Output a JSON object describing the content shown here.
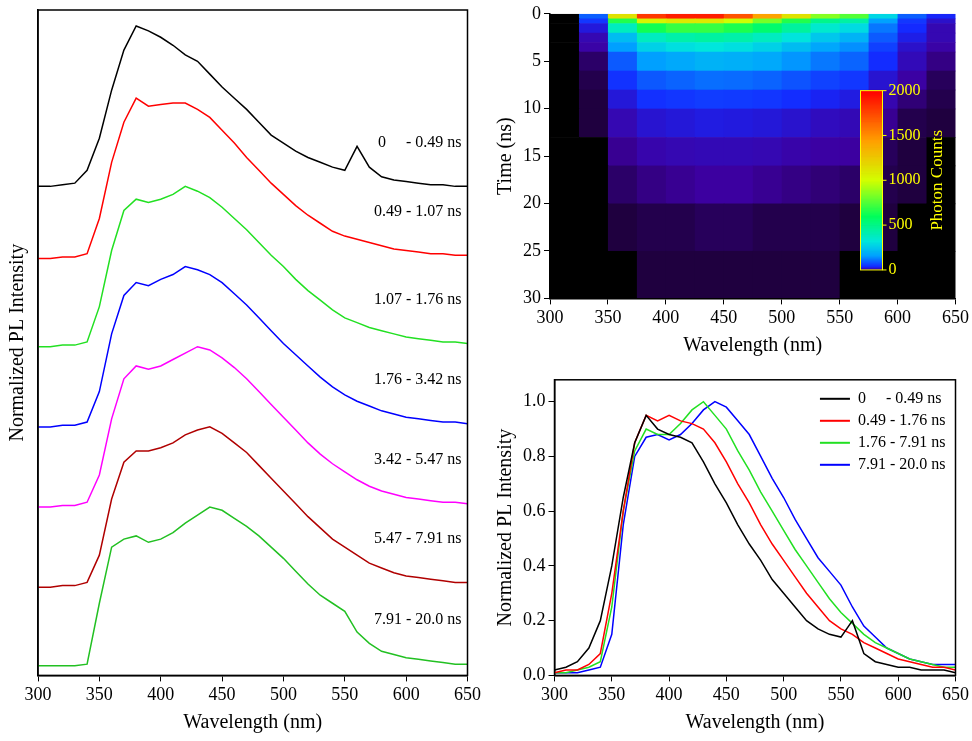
{
  "chart_data": [
    {
      "type": "line",
      "xlabel": "Wavelength (nm)",
      "ylabel": "Normalized PL Intensity",
      "x": [
        300,
        310,
        320,
        330,
        340,
        350,
        360,
        370,
        380,
        390,
        400,
        410,
        420,
        430,
        440,
        450,
        460,
        470,
        480,
        490,
        500,
        510,
        520,
        530,
        540,
        550,
        560,
        570,
        580,
        590,
        600,
        610,
        620,
        630,
        640,
        650
      ],
      "series": [
        {
          "name": "0     - 0.49 ns",
          "color": "#000000",
          "values": [
            3.0,
            3.0,
            3.01,
            3.02,
            3.1,
            3.3,
            3.6,
            3.85,
            4.0,
            3.97,
            3.93,
            3.88,
            3.82,
            3.78,
            3.7,
            3.62,
            3.55,
            3.48,
            3.4,
            3.32,
            3.27,
            3.22,
            3.18,
            3.15,
            3.12,
            3.1,
            3.25,
            3.12,
            3.06,
            3.04,
            3.03,
            3.02,
            3.01,
            3.01,
            3.0,
            3.0
          ]
        },
        {
          "name": "0.49 - 1.07 ns",
          "color": "#ff0000",
          "values": [
            2.55,
            2.55,
            2.56,
            2.56,
            2.58,
            2.8,
            3.15,
            3.4,
            3.55,
            3.5,
            3.51,
            3.52,
            3.52,
            3.48,
            3.43,
            3.35,
            3.27,
            3.18,
            3.1,
            3.02,
            2.95,
            2.88,
            2.82,
            2.77,
            2.72,
            2.69,
            2.67,
            2.65,
            2.63,
            2.61,
            2.6,
            2.59,
            2.58,
            2.58,
            2.57,
            2.57
          ]
        },
        {
          "name": "1.07 - 1.76 ns",
          "color": "#22e022",
          "values": [
            2.0,
            2.0,
            2.01,
            2.01,
            2.03,
            2.25,
            2.6,
            2.85,
            2.92,
            2.9,
            2.92,
            2.95,
            3.0,
            2.97,
            2.93,
            2.87,
            2.8,
            2.73,
            2.65,
            2.57,
            2.5,
            2.42,
            2.35,
            2.29,
            2.23,
            2.18,
            2.15,
            2.12,
            2.1,
            2.08,
            2.06,
            2.05,
            2.04,
            2.03,
            2.03,
            2.02
          ]
        },
        {
          "name": "1.76 - 3.42 ns",
          "color": "#0000ff",
          "values": [
            1.5,
            1.5,
            1.51,
            1.51,
            1.53,
            1.72,
            2.08,
            2.32,
            2.4,
            2.38,
            2.42,
            2.45,
            2.5,
            2.48,
            2.45,
            2.4,
            2.33,
            2.26,
            2.18,
            2.1,
            2.02,
            1.95,
            1.88,
            1.81,
            1.75,
            1.7,
            1.66,
            1.63,
            1.6,
            1.58,
            1.56,
            1.55,
            1.54,
            1.53,
            1.53,
            1.52
          ]
        },
        {
          "name": "3.42 - 5.47 ns",
          "color": "#ff00ff",
          "values": [
            1.0,
            1.0,
            1.01,
            1.01,
            1.03,
            1.2,
            1.55,
            1.8,
            1.88,
            1.86,
            1.88,
            1.92,
            1.96,
            2.0,
            1.98,
            1.93,
            1.87,
            1.8,
            1.72,
            1.64,
            1.56,
            1.48,
            1.4,
            1.33,
            1.27,
            1.22,
            1.17,
            1.13,
            1.1,
            1.08,
            1.06,
            1.05,
            1.04,
            1.03,
            1.03,
            1.02
          ]
        },
        {
          "name": "5.47 - 7.91 ns",
          "color": "#b00000",
          "values": [
            0.5,
            0.5,
            0.51,
            0.51,
            0.53,
            0.7,
            1.05,
            1.28,
            1.35,
            1.35,
            1.37,
            1.4,
            1.45,
            1.48,
            1.5,
            1.46,
            1.4,
            1.34,
            1.26,
            1.18,
            1.1,
            1.02,
            0.94,
            0.87,
            0.8,
            0.75,
            0.7,
            0.65,
            0.62,
            0.59,
            0.57,
            0.56,
            0.55,
            0.54,
            0.53,
            0.53
          ]
        },
        {
          "name": "7.91 - 20.0 ns",
          "color": "#22c022",
          "values": [
            0.01,
            0.01,
            0.01,
            0.01,
            0.02,
            0.4,
            0.75,
            0.8,
            0.82,
            0.78,
            0.8,
            0.84,
            0.9,
            0.95,
            1.0,
            0.98,
            0.93,
            0.88,
            0.82,
            0.75,
            0.68,
            0.6,
            0.52,
            0.45,
            0.4,
            0.35,
            0.22,
            0.15,
            0.1,
            0.08,
            0.06,
            0.05,
            0.04,
            0.03,
            0.02,
            0.02
          ]
        }
      ],
      "xlim": [
        300,
        650
      ],
      "xticks": [
        300,
        350,
        400,
        450,
        500,
        550,
        600,
        650
      ],
      "ylim": [
        -0.05,
        4.1
      ],
      "tick_labels": "x",
      "grid": false,
      "legend": "inline"
    },
    {
      "type": "heatmap",
      "xlabel": "Wavelength (nm)",
      "ylabel": "Time (ns)",
      "x_bins": [
        300,
        325,
        350,
        375,
        400,
        425,
        450,
        475,
        500,
        525,
        550,
        575,
        600,
        625,
        650
      ],
      "y_bins": [
        0,
        0.5,
        1,
        2,
        3,
        4,
        6,
        8,
        10,
        13,
        16,
        20,
        25,
        30
      ],
      "cells": [
        [
          0,
          95,
          1140,
          1805,
          1900,
          1900,
          1710,
          1425,
          1140,
          855,
          760,
          285,
          95,
          38
        ],
        [
          0,
          55,
          660,
          1045,
          1100,
          1100,
          990,
          825,
          660,
          495,
          440,
          165,
          55,
          22
        ],
        [
          0,
          28,
          385,
          630,
          700,
          700,
          651,
          560,
          455,
          350,
          294,
          119,
          42,
          14
        ],
        [
          0,
          14,
          225,
          383,
          428,
          450,
          428,
          383,
          315,
          248,
          203,
          90,
          32,
          14
        ],
        [
          0,
          10,
          160,
          272,
          304,
          320,
          304,
          272,
          224,
          176,
          144,
          64,
          22,
          10
        ],
        [
          0,
          4,
          90,
          160,
          180,
          200,
          194,
          180,
          150,
          120,
          100,
          44,
          16,
          6
        ],
        [
          0,
          2,
          50,
          88,
          99,
          110,
          107,
          99,
          83,
          66,
          55,
          24,
          9,
          3
        ],
        [
          0,
          1,
          27,
          48,
          54,
          60,
          58,
          54,
          45,
          36,
          30,
          13,
          5,
          2
        ],
        [
          0,
          1,
          14,
          24,
          27,
          30,
          29,
          27,
          23,
          18,
          15,
          7,
          2,
          1
        ],
        [
          0,
          0,
          7,
          12,
          14,
          15,
          15,
          14,
          11,
          9,
          8,
          3,
          1,
          0
        ],
        [
          0,
          0,
          4,
          6,
          7,
          8,
          8,
          7,
          6,
          5,
          4,
          2,
          1,
          0
        ],
        [
          0,
          0,
          1,
          2,
          2,
          3,
          3,
          2,
          2,
          2,
          1,
          1,
          0,
          0
        ],
        [
          0,
          0,
          0,
          1,
          1,
          1,
          1,
          1,
          1,
          1,
          0,
          0,
          0,
          0
        ]
      ],
      "xlim": [
        300,
        650
      ],
      "xticks": [
        300,
        350,
        400,
        450,
        500,
        550,
        600,
        650
      ],
      "ylim": [
        30,
        0
      ],
      "yticks": [
        0,
        5,
        10,
        15,
        20,
        25,
        30
      ],
      "colorbar": {
        "label": "Photon Counts",
        "range": [
          0,
          2000
        ],
        "ticks": [
          0,
          500,
          1000,
          1500,
          2000
        ]
      },
      "grid": false
    },
    {
      "type": "line",
      "xlabel": "Wavelength (nm)",
      "ylabel": "Normalized PL Intensity",
      "x": [
        300,
        310,
        320,
        330,
        340,
        350,
        360,
        370,
        380,
        390,
        400,
        410,
        420,
        430,
        440,
        450,
        460,
        470,
        480,
        490,
        500,
        510,
        520,
        530,
        540,
        550,
        560,
        570,
        580,
        590,
        600,
        610,
        620,
        630,
        640,
        650
      ],
      "series": [
        {
          "name": "0     - 0.49 ns",
          "color": "#000000",
          "values": [
            0.02,
            0.03,
            0.05,
            0.1,
            0.2,
            0.4,
            0.65,
            0.85,
            0.95,
            0.9,
            0.88,
            0.87,
            0.85,
            0.78,
            0.7,
            0.63,
            0.55,
            0.48,
            0.42,
            0.35,
            0.3,
            0.25,
            0.2,
            0.17,
            0.15,
            0.14,
            0.2,
            0.08,
            0.05,
            0.04,
            0.03,
            0.03,
            0.02,
            0.02,
            0.02,
            0.01
          ]
        },
        {
          "name": "0.49 - 1.76 ns",
          "color": "#ff0000",
          "values": [
            0.01,
            0.02,
            0.02,
            0.04,
            0.08,
            0.3,
            0.6,
            0.85,
            0.95,
            0.93,
            0.95,
            0.93,
            0.92,
            0.9,
            0.85,
            0.78,
            0.7,
            0.63,
            0.55,
            0.48,
            0.42,
            0.36,
            0.3,
            0.25,
            0.2,
            0.17,
            0.15,
            0.12,
            0.1,
            0.08,
            0.06,
            0.05,
            0.04,
            0.03,
            0.03,
            0.02
          ]
        },
        {
          "name": "1.76 - 7.91 ns",
          "color": "#22e022",
          "values": [
            0.01,
            0.01,
            0.02,
            0.03,
            0.05,
            0.25,
            0.6,
            0.82,
            0.9,
            0.88,
            0.88,
            0.92,
            0.97,
            1.0,
            0.95,
            0.9,
            0.82,
            0.75,
            0.67,
            0.6,
            0.53,
            0.46,
            0.4,
            0.34,
            0.28,
            0.23,
            0.19,
            0.15,
            0.12,
            0.1,
            0.08,
            0.06,
            0.05,
            0.04,
            0.03,
            0.03
          ]
        },
        {
          "name": "7.91 - 20.0 ns",
          "color": "#0000ff",
          "values": [
            0.01,
            0.01,
            0.01,
            0.02,
            0.03,
            0.15,
            0.55,
            0.8,
            0.87,
            0.88,
            0.86,
            0.88,
            0.92,
            0.97,
            1.0,
            0.98,
            0.93,
            0.88,
            0.8,
            0.72,
            0.65,
            0.57,
            0.5,
            0.43,
            0.38,
            0.33,
            0.25,
            0.18,
            0.14,
            0.1,
            0.08,
            0.06,
            0.05,
            0.04,
            0.04,
            0.04
          ]
        }
      ],
      "xlim": [
        300,
        650
      ],
      "xticks": [
        300,
        350,
        400,
        450,
        500,
        550,
        600,
        650
      ],
      "ylim": [
        0,
        1.08
      ],
      "yticks": [
        {
          "value": 0,
          "label": "0.0"
        },
        0.2,
        0.4,
        0.6,
        0.8,
        {
          "value": 1,
          "label": "1.0"
        }
      ],
      "grid": false,
      "legend": "upper right"
    }
  ]
}
